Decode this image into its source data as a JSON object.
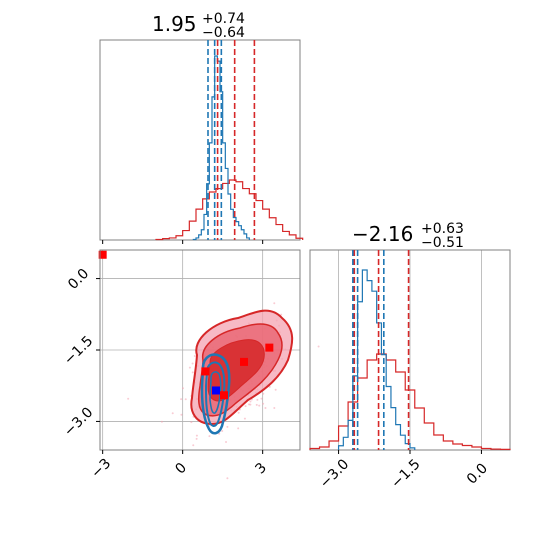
{
  "colors": {
    "red": "#d62728",
    "blue": "#1f77b4",
    "pink": "#f4a3b1",
    "grid": "#b0b0b0",
    "frame": "#808080"
  },
  "chart_data": [
    {
      "panel": "marginal-top",
      "type": "histogram",
      "title": {
        "main": "1.95",
        "sup": "+0.74",
        "sub": "−0.64"
      },
      "xlim": [
        -3.1,
        4.4
      ],
      "series": [
        {
          "color": "red",
          "quantiles": [
            1.31,
            1.95,
            2.69
          ],
          "bins_x": [
            -1.0,
            -0.75,
            -0.5,
            -0.25,
            0.0,
            0.25,
            0.5,
            0.75,
            1.0,
            1.25,
            1.5,
            1.75,
            2.0,
            2.25,
            2.5,
            2.75,
            3.0,
            3.25,
            3.5,
            3.75,
            4.0,
            4.25
          ],
          "counts": [
            0.3,
            0.8,
            1.2,
            2.5,
            5.5,
            11,
            18,
            24,
            28,
            30,
            33,
            35,
            34,
            30,
            27,
            23,
            18,
            13,
            9,
            5,
            3,
            1
          ]
        },
        {
          "color": "blue",
          "quantiles": [
            0.95,
            1.2,
            1.45
          ],
          "bins_x": [
            0.4,
            0.5,
            0.6,
            0.7,
            0.8,
            0.9,
            1.0,
            1.1,
            1.2,
            1.3,
            1.4,
            1.5,
            1.6,
            1.7,
            1.8,
            1.9,
            2.0,
            2.1,
            2.2,
            2.3,
            2.4
          ],
          "counts": [
            0.5,
            2,
            5,
            10,
            25,
            55,
            95,
            140,
            180,
            175,
            145,
            95,
            70,
            45,
            30,
            22,
            18,
            14,
            10,
            6,
            2
          ]
        }
      ]
    },
    {
      "panel": "joint",
      "type": "contour",
      "xlim": [
        -3.1,
        4.4
      ],
      "ylim": [
        -3.6,
        0.6
      ],
      "xticks": [
        "−3",
        "0",
        "3"
      ],
      "yticks": [
        "0.0",
        "−1.5",
        "−3.0"
      ],
      "markers": [
        {
          "color": "red",
          "x": -3.0,
          "y": 0.5
        },
        {
          "color": "red",
          "x": 0.85,
          "y": -1.95
        },
        {
          "color": "red",
          "x": 2.3,
          "y": -1.75
        },
        {
          "color": "red",
          "x": 3.25,
          "y": -1.45
        },
        {
          "color": "red",
          "x": 1.55,
          "y": -2.45
        },
        {
          "color": "blue",
          "x": 1.25,
          "y": -2.35
        }
      ]
    },
    {
      "panel": "marginal-right",
      "type": "histogram",
      "title": {
        "main": "−2.16",
        "sup": "+0.63",
        "sub": "−0.51"
      },
      "xlim": [
        -3.6,
        0.6
      ],
      "xticks": [
        "−3.0",
        "−1.5",
        "0.0"
      ],
      "series": [
        {
          "color": "red",
          "quantiles": [
            -2.67,
            -2.16,
            -1.53
          ],
          "bins_x": [
            -3.6,
            -3.4,
            -3.2,
            -3.0,
            -2.8,
            -2.6,
            -2.4,
            -2.2,
            -2.0,
            -1.8,
            -1.6,
            -1.4,
            -1.2,
            -1.0,
            -0.8,
            -0.6,
            -0.4,
            -0.2,
            0.0,
            0.2,
            0.4
          ],
          "counts": [
            0.5,
            1,
            3,
            8,
            16,
            24,
            30,
            32,
            30,
            26,
            20,
            14,
            9,
            5,
            3,
            2,
            1.5,
            1,
            0.5,
            0.3,
            0.2
          ]
        },
        {
          "color": "blue",
          "quantiles": [
            -2.7,
            -2.6,
            -2.05
          ],
          "bins_x": [
            -3.0,
            -2.9,
            -2.8,
            -2.7,
            -2.6,
            -2.5,
            -2.4,
            -2.3,
            -2.2,
            -2.1,
            -2.0,
            -1.9,
            -1.8,
            -1.7,
            -1.6,
            -1.5
          ],
          "counts": [
            2,
            6,
            14,
            35,
            70,
            85,
            80,
            75,
            60,
            45,
            30,
            20,
            12,
            7,
            3,
            1
          ]
        }
      ]
    }
  ]
}
